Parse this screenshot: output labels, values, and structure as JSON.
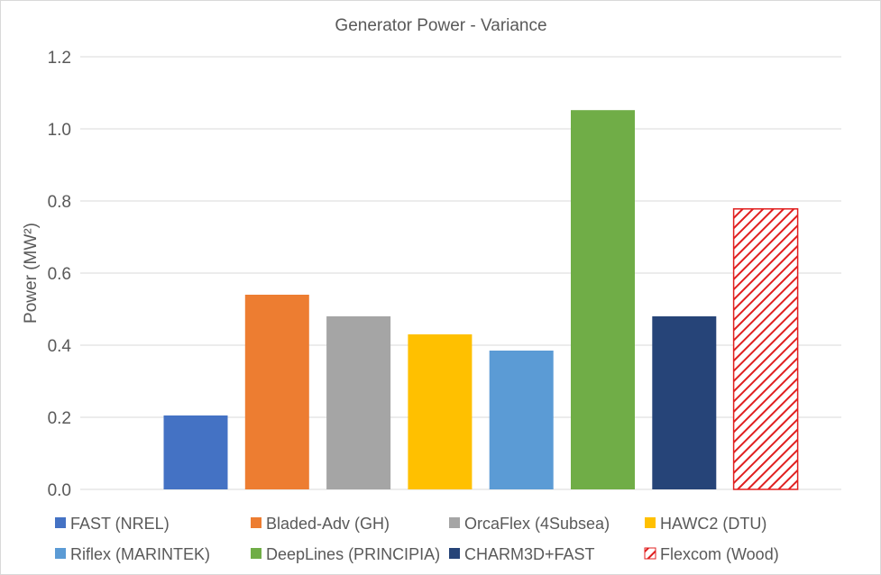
{
  "chart_data": {
    "type": "bar",
    "title": "Generator Power - Variance",
    "ylabel": "Power (MW²)",
    "xlabel": "",
    "ylim": [
      0,
      1.2
    ],
    "yticks": [
      "0.0",
      "0.2",
      "0.4",
      "0.6",
      "0.8",
      "1.0",
      "1.2"
    ],
    "grid": true,
    "legend_position": "bottom",
    "series": [
      {
        "name": "FAST (NREL)",
        "value": 0.205,
        "color": "#4472c4",
        "pattern": "solid"
      },
      {
        "name": "Bladed-Adv (GH)",
        "value": 0.54,
        "color": "#ed7d31",
        "pattern": "solid"
      },
      {
        "name": "OrcaFlex (4Subsea)",
        "value": 0.48,
        "color": "#a5a5a5",
        "pattern": "solid"
      },
      {
        "name": "HAWC2 (DTU)",
        "value": 0.43,
        "color": "#ffc000",
        "pattern": "solid"
      },
      {
        "name": "Riflex (MARINTEK)",
        "value": 0.385,
        "color": "#5b9bd5",
        "pattern": "solid"
      },
      {
        "name": "DeepLines (PRINCIPIA)",
        "value": 1.052,
        "color": "#70ad47",
        "pattern": "solid"
      },
      {
        "name": "CHARM3D+FAST",
        "value": 0.48,
        "color": "#264478",
        "pattern": "solid"
      },
      {
        "name": "Flexcom (Wood)",
        "value": 0.778,
        "color": "#e02020",
        "pattern": "diagonal-hatch"
      }
    ]
  }
}
